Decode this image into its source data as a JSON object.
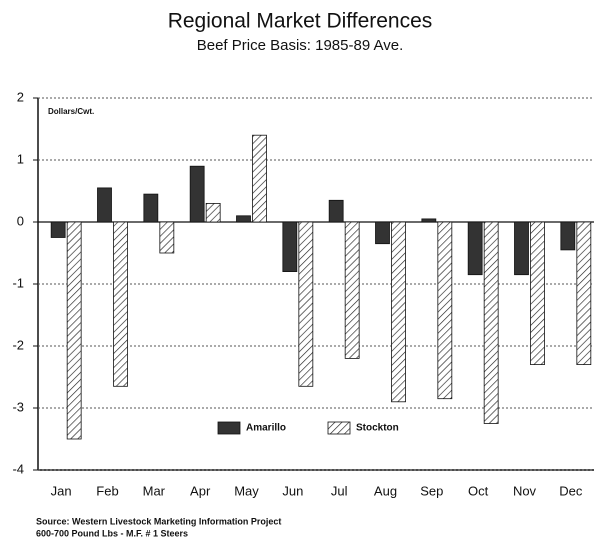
{
  "chart_data": {
    "type": "bar",
    "title": "Regional Market Differences",
    "subtitle": "Beef Price Basis: 1985-89 Ave.",
    "y_unit": "Dollars/Cwt.",
    "categories": [
      "Jan",
      "Feb",
      "Mar",
      "Apr",
      "May",
      "Jun",
      "Jul",
      "Aug",
      "Sep",
      "Oct",
      "Nov",
      "Dec"
    ],
    "series": [
      {
        "name": "Amarillo",
        "color": "#333333",
        "hatch": false,
        "values": [
          -0.25,
          0.55,
          0.45,
          0.9,
          0.1,
          -0.8,
          0.35,
          -0.35,
          0.05,
          -0.85,
          -0.85,
          -0.45
        ]
      },
      {
        "name": "Stockton",
        "color": "#ffffff",
        "hatch": true,
        "values": [
          -3.5,
          -2.65,
          -0.5,
          0.3,
          1.4,
          -2.65,
          -2.2,
          -2.9,
          -2.85,
          -3.25,
          -2.3,
          -2.3
        ]
      }
    ],
    "ylim": [
      -4,
      2
    ],
    "yticks": [
      2,
      1,
      0,
      -1,
      -2,
      -3,
      -4
    ],
    "grid": true,
    "legend": "bottom",
    "source": [
      "Source: Western Livestock Marketing Information Project",
      "600-700 Pound Lbs - M.F. # 1 Steers"
    ]
  }
}
